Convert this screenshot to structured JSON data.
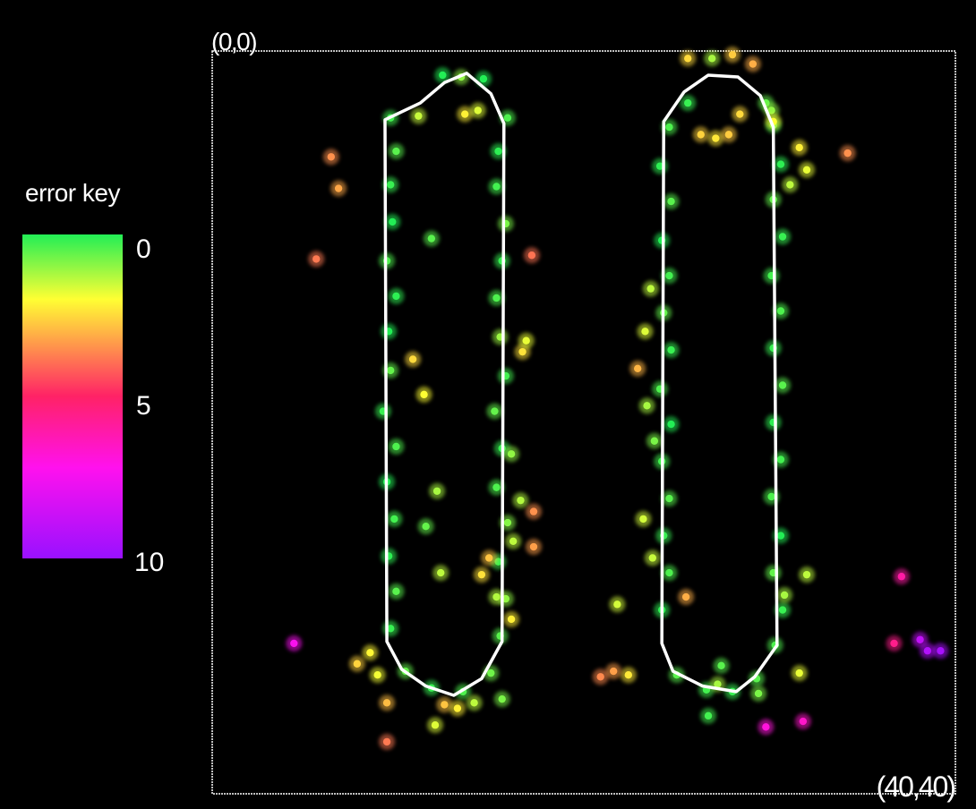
{
  "chart_data": {
    "type": "scatter",
    "corner_labels": {
      "origin": "(0,0)",
      "far": "(40,40)"
    },
    "xlim": [
      0,
      40
    ],
    "ylim": [
      0,
      40
    ],
    "y_inverted": true,
    "grid": false,
    "frame_color": "#ffffff",
    "error_key": {
      "title": "error key",
      "ticks": [
        {
          "label": "0",
          "value": 0
        },
        {
          "label": "5",
          "value": 5
        },
        {
          "label": "10",
          "value": 10
        }
      ],
      "range": [
        0,
        10
      ],
      "colors": [
        {
          "value": 0,
          "color": "#22ee55"
        },
        {
          "value": 2,
          "color": "#ffff33"
        },
        {
          "value": 5,
          "color": "#ff2266"
        },
        {
          "value": 7.2,
          "color": "#ff11ee"
        },
        {
          "value": 10,
          "color": "#9911ff"
        }
      ]
    },
    "outlines": [
      [
        [
          11.2,
          2.8
        ],
        [
          12.5,
          1.7
        ],
        [
          13.7,
          1.2
        ],
        [
          15,
          2.3
        ],
        [
          15.7,
          3.9
        ],
        [
          15.6,
          31.8
        ],
        [
          14.5,
          33.8
        ],
        [
          13,
          34.7
        ],
        [
          11.5,
          34.2
        ],
        [
          10.2,
          33.3
        ],
        [
          9.4,
          31.8
        ],
        [
          9.3,
          3.7
        ]
      ],
      [
        [
          25.4,
          2.2
        ],
        [
          26.7,
          1.3
        ],
        [
          28.3,
          1.4
        ],
        [
          29.5,
          2.4
        ],
        [
          30.2,
          4.1
        ],
        [
          30.4,
          32
        ],
        [
          29.2,
          33.7
        ],
        [
          28.2,
          34.5
        ],
        [
          26.4,
          34.2
        ],
        [
          24.8,
          33.4
        ],
        [
          24.2,
          31.9
        ],
        [
          24.3,
          3.8
        ]
      ]
    ],
    "points": [
      [
        12.4,
        1.3,
        0
      ],
      [
        13.4,
        1.4,
        1
      ],
      [
        14.6,
        1.5,
        0
      ],
      [
        9.6,
        3.6,
        0.3
      ],
      [
        9.9,
        5.4,
        0.5
      ],
      [
        9.6,
        7.2,
        0.2
      ],
      [
        9.7,
        9.2,
        0
      ],
      [
        9.4,
        11.3,
        0.4
      ],
      [
        9.9,
        13.2,
        0.1
      ],
      [
        9.5,
        15.1,
        0
      ],
      [
        9.6,
        17.2,
        0.6
      ],
      [
        9.2,
        19.4,
        0.2
      ],
      [
        9.9,
        21.3,
        0.4
      ],
      [
        9.4,
        23.2,
        0
      ],
      [
        9.8,
        25.2,
        0.3
      ],
      [
        9.5,
        27.2,
        0.1
      ],
      [
        9.9,
        29.1,
        0.5
      ],
      [
        9.6,
        31.1,
        0.2
      ],
      [
        10.4,
        33.4,
        0.6
      ],
      [
        11.8,
        34.3,
        0.2
      ],
      [
        13.5,
        34.5,
        0.4
      ],
      [
        15,
        33.5,
        0.7
      ],
      [
        15.5,
        31.5,
        0.5
      ],
      [
        15.8,
        29.5,
        1
      ],
      [
        15.4,
        27.5,
        0.3
      ],
      [
        15.9,
        25.4,
        0.9
      ],
      [
        15.3,
        23.5,
        0.4
      ],
      [
        15.6,
        21.4,
        0.2
      ],
      [
        15.2,
        19.4,
        0.6
      ],
      [
        15.8,
        17.5,
        0.3
      ],
      [
        15.5,
        15.4,
        1.1
      ],
      [
        15.3,
        13.3,
        0.4
      ],
      [
        15.6,
        11.3,
        0.2
      ],
      [
        15.8,
        9.3,
        0.8
      ],
      [
        15.3,
        7.3,
        0.3
      ],
      [
        15.4,
        5.4,
        0.1
      ],
      [
        15.9,
        3.6,
        0.4
      ],
      [
        11.8,
        10.1,
        0.5
      ],
      [
        12.1,
        23.7,
        1.2
      ],
      [
        11.5,
        25.6,
        0.6
      ],
      [
        16.2,
        26.4,
        1.4
      ],
      [
        16.6,
        24.2,
        1.3
      ],
      [
        16.1,
        21.7,
        1
      ],
      [
        12.3,
        28.1,
        1.4
      ],
      [
        11.1,
        3.5,
        1.5
      ],
      [
        13.6,
        3.4,
        2.2
      ],
      [
        14.3,
        3.2,
        1.7
      ],
      [
        16.7,
        16.2,
        2.4
      ],
      [
        16.9,
        15.6,
        1.8
      ],
      [
        14.9,
        27.3,
        2.8
      ],
      [
        14.5,
        28.2,
        2.4
      ],
      [
        10.8,
        16.6,
        2.5
      ],
      [
        11.4,
        18.5,
        2
      ],
      [
        16.1,
        30.6,
        2.2
      ],
      [
        15.3,
        29.4,
        1.3
      ],
      [
        8.5,
        32.4,
        2.1
      ],
      [
        7.8,
        33,
        2.6
      ],
      [
        8.9,
        33.6,
        1.9
      ],
      [
        12.5,
        35.2,
        2.8
      ],
      [
        13.2,
        35.4,
        2.2
      ],
      [
        14.1,
        35.1,
        1.4
      ],
      [
        15.6,
        34.9,
        0.8
      ],
      [
        12,
        36.3,
        1.7
      ],
      [
        9.4,
        35.1,
        2.9
      ],
      [
        6.4,
        5.7,
        3.5
      ],
      [
        6.8,
        7.4,
        3.2
      ],
      [
        5.6,
        11.2,
        3.8
      ],
      [
        17.2,
        11,
        3.9
      ],
      [
        17.3,
        24.8,
        3.5
      ],
      [
        17.3,
        26.7,
        3.3
      ],
      [
        9.4,
        37.2,
        3.8
      ],
      [
        25.6,
        0.4,
        2.5
      ],
      [
        26.9,
        0.4,
        1.2
      ],
      [
        28,
        0.2,
        2.7
      ],
      [
        29.1,
        0.7,
        3.1
      ],
      [
        25.6,
        2.8,
        0.2
      ],
      [
        24.6,
        4.1,
        0.4
      ],
      [
        24.1,
        6.2,
        0.1
      ],
      [
        24.7,
        8.1,
        0.5
      ],
      [
        24.2,
        10.2,
        0
      ],
      [
        24.6,
        12.1,
        0.3
      ],
      [
        24.3,
        14.1,
        0.6
      ],
      [
        24.7,
        16.1,
        0.2
      ],
      [
        24.1,
        18.2,
        0.4
      ],
      [
        24.7,
        20.1,
        0
      ],
      [
        24.2,
        22.1,
        0.3
      ],
      [
        24.6,
        24.1,
        0.5
      ],
      [
        24.3,
        26.1,
        0.2
      ],
      [
        24.6,
        28.1,
        0.4
      ],
      [
        24.2,
        30.1,
        0.1
      ],
      [
        25,
        33.6,
        0.5
      ],
      [
        26.6,
        34.4,
        0.3
      ],
      [
        28,
        34.5,
        0.2
      ],
      [
        29.3,
        33.8,
        0.5
      ],
      [
        30.3,
        32,
        0.4
      ],
      [
        30.7,
        30.1,
        0.2
      ],
      [
        30.2,
        28.1,
        0.6
      ],
      [
        30.6,
        26.1,
        0
      ],
      [
        30.1,
        24,
        0.4
      ],
      [
        30.6,
        22,
        0.3
      ],
      [
        30.2,
        20,
        0.1
      ],
      [
        30.7,
        18,
        0.5
      ],
      [
        30.2,
        16,
        0.2
      ],
      [
        30.6,
        14,
        0.4
      ],
      [
        30.1,
        12.1,
        0.3
      ],
      [
        30.7,
        10,
        0.2
      ],
      [
        30.2,
        8,
        0.6
      ],
      [
        30.6,
        6.1,
        0.1
      ],
      [
        30.2,
        4,
        0.4
      ],
      [
        29.8,
        2.8,
        0.6
      ],
      [
        30.1,
        3.2,
        1
      ],
      [
        23.3,
        15.1,
        1.7
      ],
      [
        23.6,
        12.8,
        1.4
      ],
      [
        23.4,
        19.1,
        1.2
      ],
      [
        23.8,
        21,
        0.8
      ],
      [
        23.2,
        25.2,
        1.6
      ],
      [
        23.7,
        27.3,
        1.5
      ],
      [
        22.9,
        17.1,
        3
      ],
      [
        21.8,
        29.8,
        1.6
      ],
      [
        22.4,
        33.6,
        2.3
      ],
      [
        21.6,
        33.4,
        3.3
      ],
      [
        20.9,
        33.7,
        3.6
      ],
      [
        25.5,
        29.4,
        3.1
      ],
      [
        26.3,
        4.5,
        2.6
      ],
      [
        27.1,
        4.7,
        2.3
      ],
      [
        27.8,
        4.5,
        2.7
      ],
      [
        28.4,
        3.4,
        2.5
      ],
      [
        31.6,
        5.2,
        2.2
      ],
      [
        32,
        6.4,
        1.8
      ],
      [
        31.1,
        7.2,
        1.4
      ],
      [
        32,
        28.2,
        1.4
      ],
      [
        30.8,
        29.3,
        1.2
      ],
      [
        31.6,
        33.5,
        1.8
      ],
      [
        29.4,
        34.6,
        0.8
      ],
      [
        27.4,
        33.1,
        0.5
      ],
      [
        27.2,
        34.1,
        1.2
      ],
      [
        26.7,
        35.8,
        0.3
      ],
      [
        30.2,
        3.8,
        2
      ],
      [
        34.2,
        5.5,
        3.5
      ],
      [
        37.1,
        28.3,
        6
      ],
      [
        36.7,
        31.9,
        5.6
      ],
      [
        38.1,
        31.7,
        8.9
      ],
      [
        38.5,
        32.3,
        9.3
      ],
      [
        39.2,
        32.3,
        9.6
      ],
      [
        31.8,
        36.1,
        6.6
      ],
      [
        29.8,
        36.4,
        6.9
      ],
      [
        4.4,
        31.9,
        7.4
      ]
    ]
  }
}
